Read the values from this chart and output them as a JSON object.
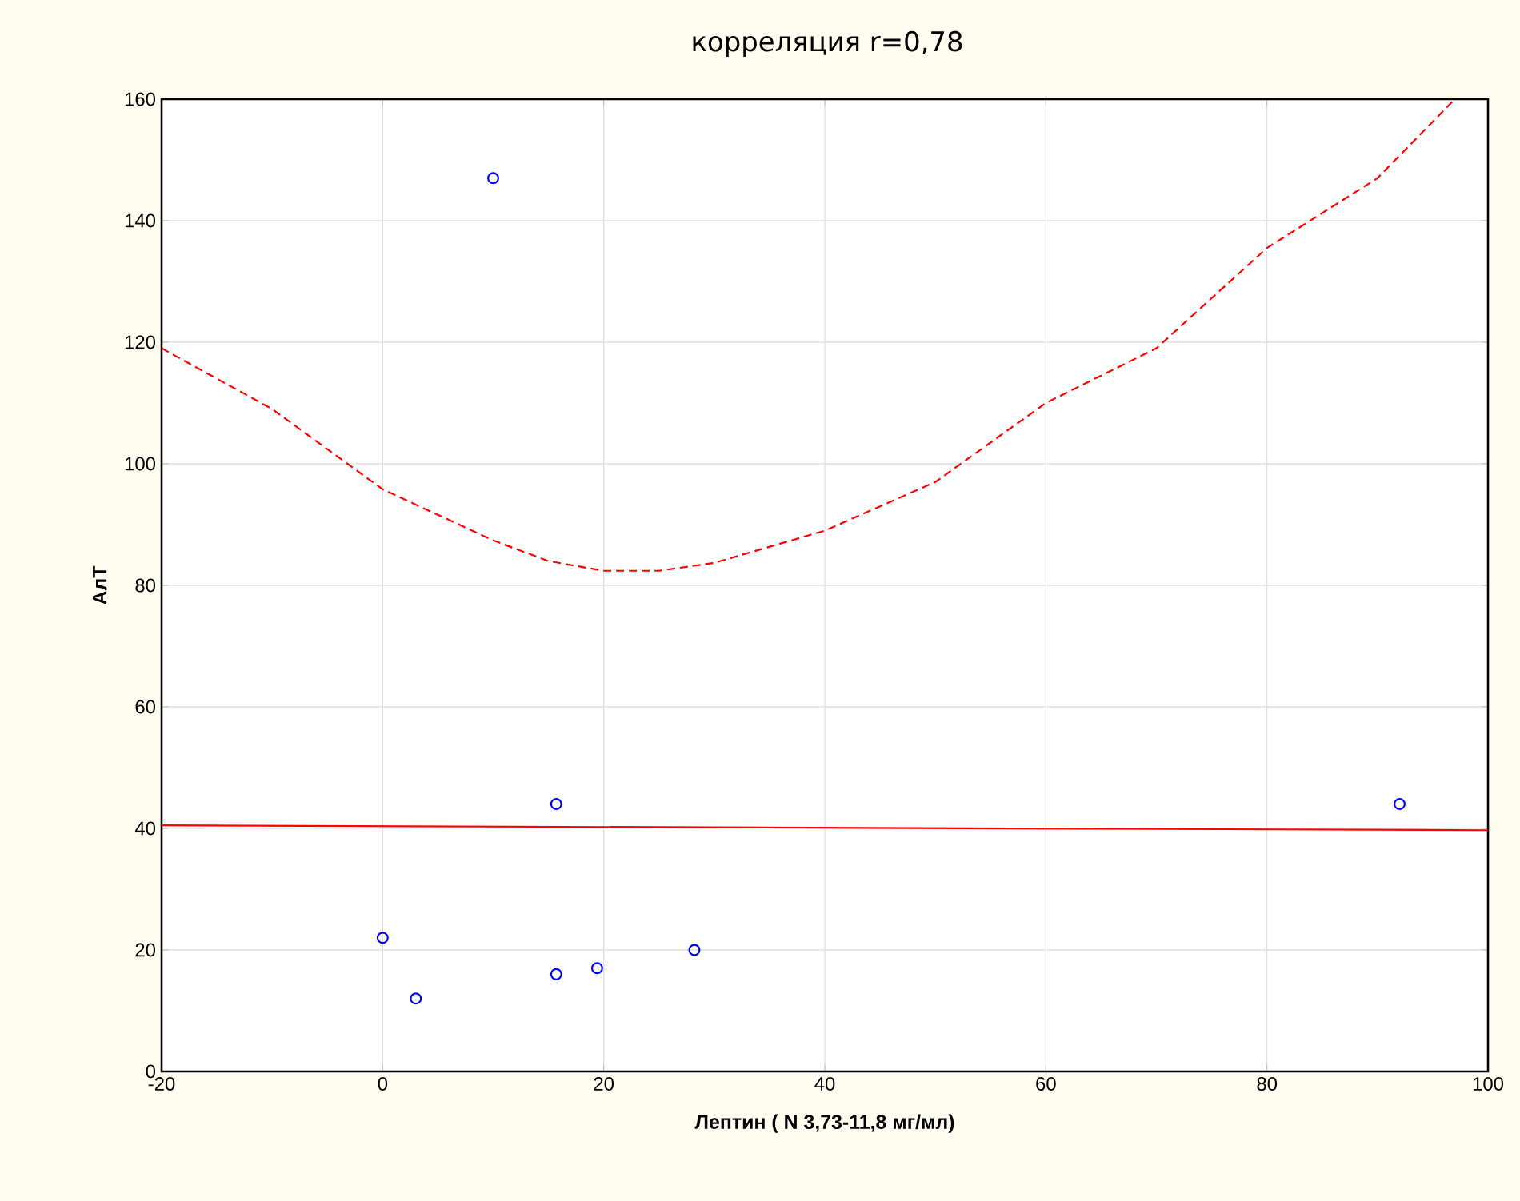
{
  "chart_data": {
    "type": "scatter",
    "title": "корреляция r=0,78",
    "xlabel": "Лептин ( N 3,73-11,8 мг/мл)",
    "ylabel": "АлТ",
    "xlim": [
      -20,
      100
    ],
    "ylim": [
      0,
      160
    ],
    "xticks": [
      -20,
      0,
      20,
      40,
      60,
      80,
      100
    ],
    "yticks": [
      0,
      20,
      40,
      60,
      80,
      100,
      120,
      140,
      160
    ],
    "grid": true,
    "series": [
      {
        "color": "#0000ff",
        "marker": "circle",
        "x": [
          0,
          3,
          10,
          15.7,
          15.7,
          19.4,
          28.2,
          92
        ],
        "values": [
          22,
          12,
          147,
          44,
          16,
          17,
          20,
          44
        ]
      },
      {
        "type": "line",
        "color": "#ff0000",
        "marker": "none",
        "line_style": "solid",
        "x": [
          -20,
          100
        ],
        "values": [
          40.5,
          39.7
        ]
      },
      {
        "type": "line",
        "color": "#ff0000",
        "marker": "none",
        "line_style": "dashed",
        "x": [
          -20,
          -10,
          0,
          10,
          15,
          20,
          25,
          30,
          40,
          50,
          60,
          70,
          80,
          90,
          97
        ],
        "values": [
          119,
          109,
          95.8,
          87.4,
          84,
          82.4,
          82.4,
          83.7,
          89,
          97,
          110,
          119,
          135.5,
          147,
          160
        ]
      }
    ]
  }
}
